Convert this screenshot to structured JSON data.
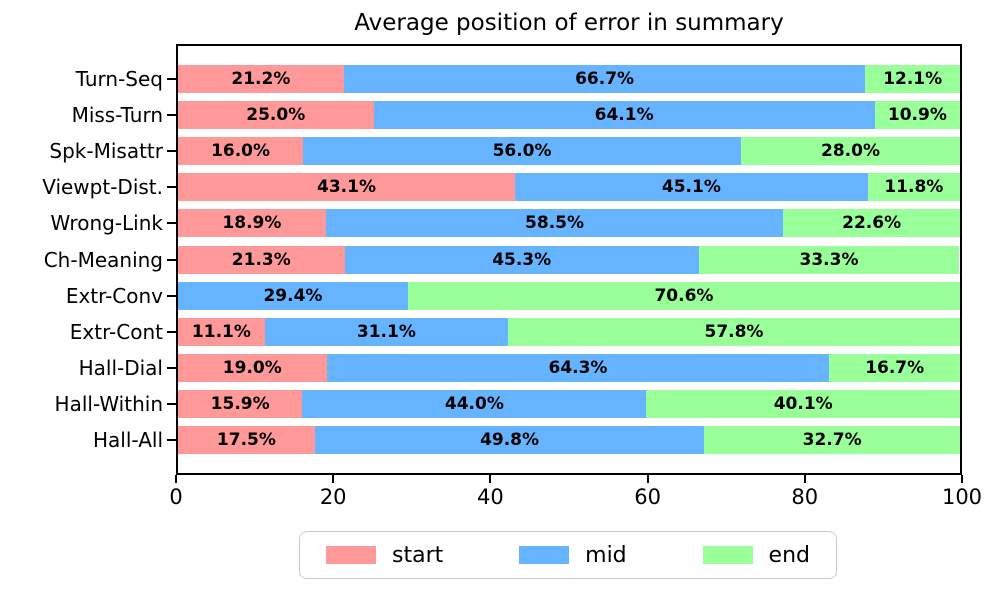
{
  "chart_data": {
    "type": "bar",
    "stacked": true,
    "orientation": "horizontal",
    "title": "Average position of error in summary",
    "categories": [
      "Turn-Seq",
      "Miss-Turn",
      "Spk-Misattr",
      "Viewpt-Dist.",
      "Wrong-Link",
      "Ch-Meaning",
      "Extr-Conv",
      "Extr-Cont",
      "Hall-Dial",
      "Hall-Within",
      "Hall-All"
    ],
    "series": [
      {
        "name": "start",
        "color": "#ff9999",
        "values": [
          21.2,
          25.0,
          16.0,
          43.1,
          18.9,
          21.3,
          0.0,
          11.1,
          19.0,
          15.9,
          17.5
        ]
      },
      {
        "name": "mid",
        "color": "#66b3ff",
        "values": [
          66.7,
          64.1,
          56.0,
          45.1,
          58.5,
          45.3,
          29.4,
          31.1,
          64.3,
          44.0,
          49.8
        ]
      },
      {
        "name": "end",
        "color": "#99ff99",
        "values": [
          12.1,
          10.9,
          28.0,
          11.8,
          22.6,
          33.3,
          70.6,
          57.8,
          16.7,
          40.1,
          32.7
        ]
      }
    ],
    "bar_label_suffix": "%",
    "xlabel": "",
    "ylabel": "",
    "xlim": [
      0,
      100
    ],
    "x_ticks": [
      0,
      20,
      40,
      60,
      80,
      100
    ],
    "grid": false,
    "legend_position": "bottom",
    "legend_entries": [
      "start",
      "mid",
      "end"
    ]
  }
}
